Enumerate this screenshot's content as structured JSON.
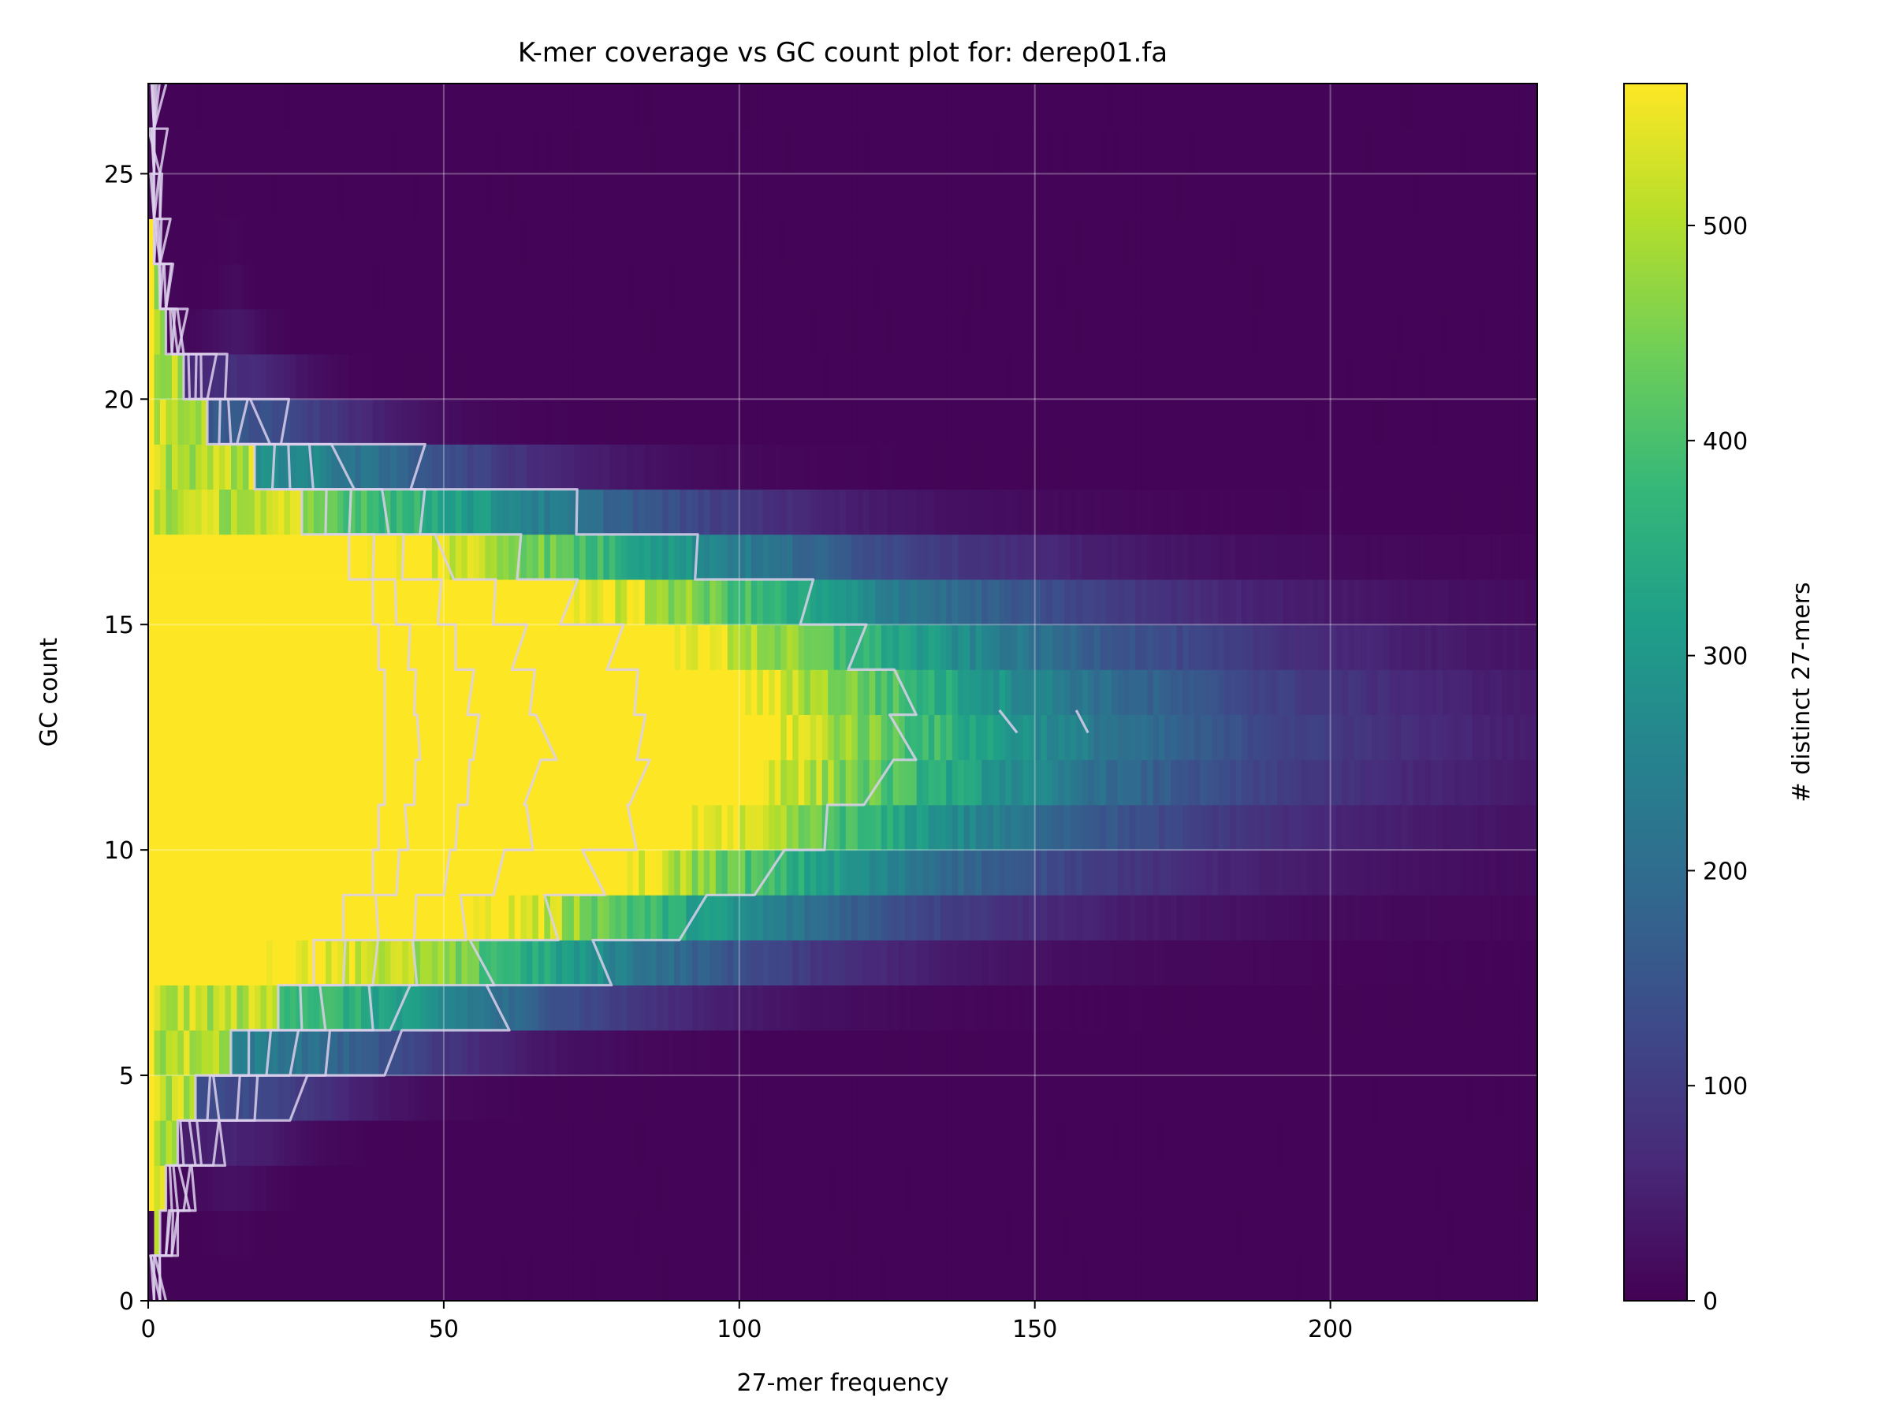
{
  "chart_data": {
    "type": "heatmap",
    "title": "K-mer coverage vs GC count plot for: derep01.fa",
    "xlabel": "27-mer frequency",
    "ylabel": "GC count",
    "xlim": [
      0,
      235
    ],
    "ylim": [
      0,
      27
    ],
    "x_ticks": [
      0,
      50,
      100,
      150,
      200
    ],
    "y_ticks": [
      0,
      5,
      10,
      15,
      20,
      25
    ],
    "grid": true,
    "colormap": "viridis",
    "colorbar": {
      "label": "# distinct 27-mers",
      "range": [
        0,
        566
      ],
      "ticks": [
        0,
        100,
        200,
        300,
        400,
        500
      ]
    },
    "colors": {
      "viridis": [
        "#440154",
        "#482878",
        "#3e4989",
        "#31688e",
        "#26828e",
        "#1f9e89",
        "#35b779",
        "#6ece58",
        "#b5de2b",
        "#fde725"
      ],
      "contour": "#dcd0ec"
    },
    "gc_bins": [
      0,
      1,
      2,
      3,
      4,
      5,
      6,
      7,
      8,
      9,
      10,
      11,
      12,
      13,
      14,
      15,
      16,
      17,
      18,
      19,
      20,
      21,
      22,
      23,
      24,
      25,
      26
    ],
    "peak_coverage": 14,
    "row_weights": [
      0.0,
      0.005,
      0.02,
      0.05,
      0.12,
      0.22,
      0.38,
      0.55,
      0.72,
      0.87,
      0.96,
      1.0,
      1.0,
      0.97,
      0.9,
      0.78,
      0.6,
      0.42,
      0.26,
      0.14,
      0.07,
      0.03,
      0.012,
      0.005,
      0.002,
      0.001,
      0.0
    ],
    "contour_extents": {
      "gc": [
        0,
        1,
        2,
        3,
        4,
        5,
        6,
        7,
        8,
        9,
        10,
        11,
        12,
        13,
        14,
        15,
        16,
        17,
        18,
        19,
        20,
        21,
        22,
        23,
        24,
        25,
        26
      ],
      "levels": [
        [
          1,
          2,
          3,
          5,
          8,
          14,
          22,
          28,
          33,
          38,
          39,
          40,
          40,
          40,
          39,
          38,
          34,
          26,
          18,
          10,
          6,
          3,
          2,
          1,
          1,
          1,
          1
        ],
        [
          1,
          3,
          4,
          6,
          10,
          17,
          26,
          33,
          39,
          42,
          44,
          45,
          46,
          45,
          44,
          42,
          38,
          30,
          21,
          12,
          7,
          4,
          2,
          1,
          1,
          1,
          1
        ],
        [
          2,
          3,
          5,
          8,
          12,
          20,
          30,
          38,
          45,
          50,
          52,
          54,
          55,
          54,
          52,
          49,
          43,
          34,
          24,
          14,
          8,
          4,
          2,
          2,
          1,
          1,
          1
        ],
        [
          2,
          4,
          6,
          9,
          15,
          24,
          36,
          46,
          54,
          60,
          63,
          66,
          67,
          66,
          63,
          58,
          50,
          39,
          27,
          16,
          9,
          5,
          3,
          2,
          1,
          1,
          1
        ],
        [
          2,
          4,
          7,
          11,
          18,
          30,
          44,
          56,
          66,
          74,
          80,
          84,
          86,
          84,
          80,
          73,
          62,
          47,
          32,
          19,
          10,
          5,
          3,
          2,
          2,
          2,
          1
        ],
        [
          3,
          5,
          8,
          13,
          24,
          40,
          60,
          78,
          93,
          106,
          116,
          124,
          128,
          126,
          120,
          110,
          95,
          74,
          48,
          26,
          13,
          6,
          3,
          2,
          2,
          2,
          1
        ]
      ],
      "islands": [
        {
          "gc": 13,
          "x": [
            144,
            147
          ]
        },
        {
          "gc": 13,
          "x": [
            157,
            159
          ]
        }
      ]
    }
  }
}
